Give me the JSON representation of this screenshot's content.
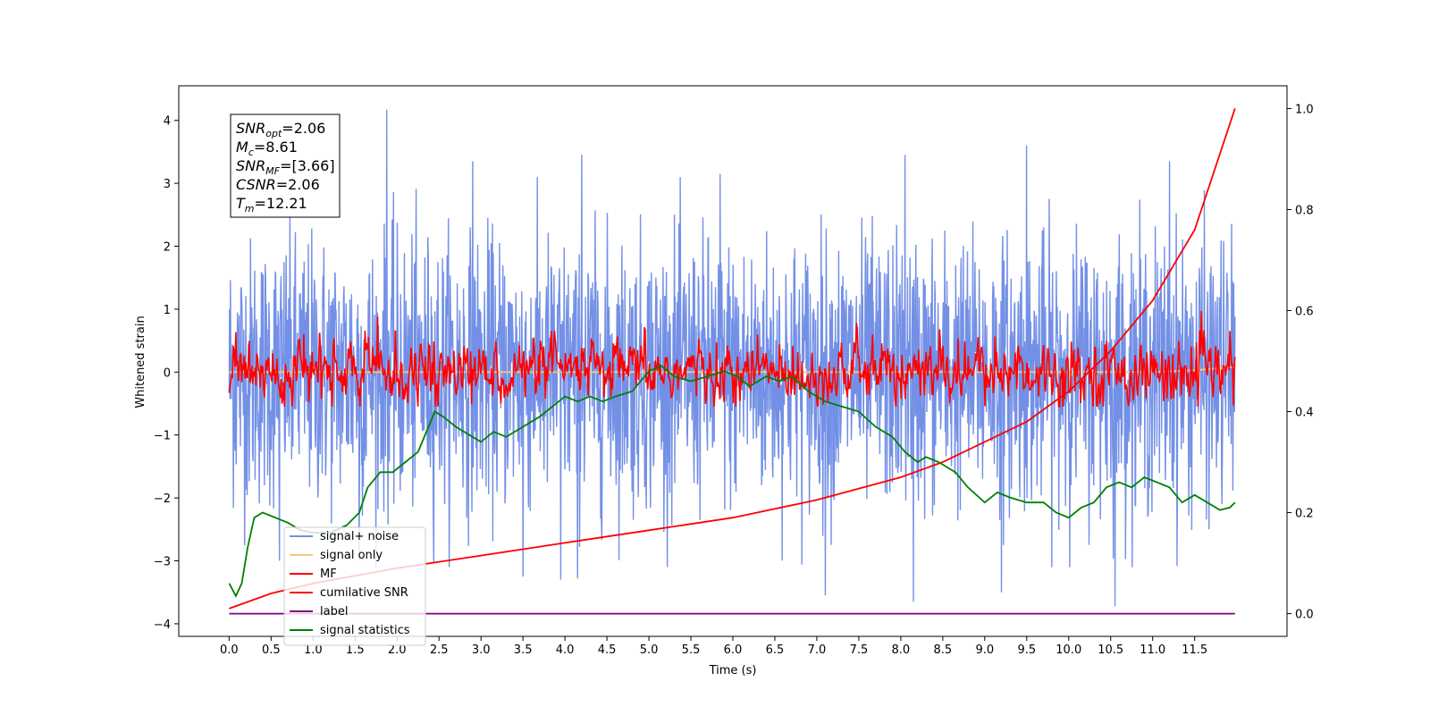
{
  "chart_data": {
    "type": "line",
    "title": "",
    "xlabel": "Time (s)",
    "ylabel": "Whitened strain",
    "xlim": [
      -0.6,
      12.6
    ],
    "ylim": [
      -4.2,
      4.55
    ],
    "y2lim": [
      -0.045,
      1.045
    ],
    "xticks": [
      0.0,
      0.5,
      1.0,
      1.5,
      2.0,
      2.5,
      3.0,
      3.5,
      4.0,
      4.5,
      5.0,
      5.5,
      6.0,
      6.5,
      7.0,
      7.5,
      8.0,
      8.5,
      9.0,
      9.5,
      10.0,
      10.5,
      11.0,
      11.5
    ],
    "xtick_labels": [
      "0.0",
      "0.5",
      "1.0",
      "1.5",
      "2.0",
      "2.5",
      "3.0",
      "3.5",
      "4.0",
      "4.5",
      "5.0",
      "5.5",
      "6.0",
      "6.5",
      "7.0",
      "7.5",
      "8.0",
      "8.5",
      "9.0",
      "9.5",
      "10.0",
      "10.5",
      "11.0",
      "11.5"
    ],
    "yticks": [
      -4,
      -3,
      -2,
      -1,
      0,
      1,
      2,
      3,
      4
    ],
    "ytick_labels": [
      "−4",
      "−3",
      "−2",
      "−1",
      "0",
      "1",
      "2",
      "3",
      "4"
    ],
    "y2ticks": [
      0.0,
      0.2,
      0.4,
      0.6,
      0.8,
      1.0
    ],
    "y2tick_labels": [
      "0.0",
      "0.2",
      "0.4",
      "0.6",
      "0.8",
      "1.0"
    ],
    "grid": false,
    "legend_position": "lower-left",
    "annotation": {
      "lines": [
        {
          "sym": "SNR",
          "sub": "opt",
          "val": "=2.06"
        },
        {
          "sym": "M",
          "sub": "c",
          "val": "=8.61"
        },
        {
          "sym": "SNR",
          "sub": "MF",
          "val": "=[3.66]"
        },
        {
          "sym": "CSNR",
          "sub": "",
          "val": "=2.06"
        },
        {
          "sym": "T",
          "sub": "m",
          "val": "=12.21"
        }
      ]
    },
    "series": [
      {
        "name": "signal+ noise",
        "color": "#7390e6",
        "axis": "left",
        "style": "noise",
        "sigma": 1.05,
        "spikes": [
          [
            1.88,
            4.17
          ],
          [
            9.5,
            3.6
          ],
          [
            11.2,
            3.35
          ],
          [
            4.2,
            3.45
          ],
          [
            2.9,
            3.35
          ],
          [
            8.05,
            3.45
          ],
          [
            10.55,
            -3.72
          ],
          [
            8.15,
            -3.65
          ],
          [
            7.1,
            -3.55
          ],
          [
            3.95,
            -3.3
          ],
          [
            4.15,
            -3.28
          ],
          [
            9.2,
            -3.5
          ],
          [
            3.5,
            -3.25
          ],
          [
            0.6,
            -3.0
          ],
          [
            5.85,
            3.15
          ],
          [
            1.55,
            -3.0
          ]
        ]
      },
      {
        "name": "signal only",
        "color": "#f5c87a",
        "axis": "left",
        "values": [
          [
            0,
            0
          ],
          [
            11.0,
            0
          ],
          [
            11.5,
            0.03
          ],
          [
            11.98,
            0.08
          ]
        ]
      },
      {
        "name": "MF",
        "color": "#ff0000",
        "axis": "left",
        "style": "mf"
      },
      {
        "name": "cumilative SNR",
        "color": "#ff0000",
        "axis": "right",
        "values": [
          [
            0.0,
            0.01
          ],
          [
            0.5,
            0.04
          ],
          [
            1.0,
            0.06
          ],
          [
            2.0,
            0.09
          ],
          [
            3.0,
            0.115
          ],
          [
            4.0,
            0.14
          ],
          [
            5.0,
            0.165
          ],
          [
            6.0,
            0.19
          ],
          [
            7.0,
            0.225
          ],
          [
            8.0,
            0.27
          ],
          [
            8.5,
            0.3
          ],
          [
            9.0,
            0.34
          ],
          [
            9.5,
            0.38
          ],
          [
            10.0,
            0.44
          ],
          [
            10.5,
            0.52
          ],
          [
            11.0,
            0.62
          ],
          [
            11.5,
            0.76
          ],
          [
            11.98,
            1.0
          ]
        ]
      },
      {
        "name": "label",
        "color": "#800080",
        "axis": "right",
        "values": [
          [
            0.0,
            0.0
          ],
          [
            11.98,
            0.0
          ]
        ]
      },
      {
        "name": "signal statistics",
        "color": "#008000",
        "axis": "right",
        "values": [
          [
            0.0,
            0.06
          ],
          [
            0.08,
            0.035
          ],
          [
            0.15,
            0.06
          ],
          [
            0.22,
            0.13
          ],
          [
            0.3,
            0.19
          ],
          [
            0.4,
            0.2
          ],
          [
            0.55,
            0.19
          ],
          [
            0.7,
            0.18
          ],
          [
            0.85,
            0.165
          ],
          [
            1.0,
            0.16
          ],
          [
            1.2,
            0.16
          ],
          [
            1.4,
            0.175
          ],
          [
            1.55,
            0.2
          ],
          [
            1.65,
            0.25
          ],
          [
            1.8,
            0.28
          ],
          [
            1.95,
            0.28
          ],
          [
            2.1,
            0.3
          ],
          [
            2.25,
            0.32
          ],
          [
            2.35,
            0.36
          ],
          [
            2.45,
            0.4
          ],
          [
            2.55,
            0.39
          ],
          [
            2.7,
            0.37
          ],
          [
            2.9,
            0.35
          ],
          [
            3.0,
            0.34
          ],
          [
            3.15,
            0.36
          ],
          [
            3.3,
            0.35
          ],
          [
            3.5,
            0.37
          ],
          [
            3.7,
            0.39
          ],
          [
            3.85,
            0.41
          ],
          [
            4.0,
            0.43
          ],
          [
            4.15,
            0.42
          ],
          [
            4.3,
            0.43
          ],
          [
            4.45,
            0.42
          ],
          [
            4.6,
            0.43
          ],
          [
            4.8,
            0.44
          ],
          [
            5.0,
            0.48
          ],
          [
            5.15,
            0.49
          ],
          [
            5.3,
            0.47
          ],
          [
            5.5,
            0.46
          ],
          [
            5.7,
            0.47
          ],
          [
            5.9,
            0.48
          ],
          [
            6.05,
            0.47
          ],
          [
            6.2,
            0.45
          ],
          [
            6.4,
            0.47
          ],
          [
            6.55,
            0.46
          ],
          [
            6.7,
            0.47
          ],
          [
            6.9,
            0.44
          ],
          [
            7.1,
            0.42
          ],
          [
            7.3,
            0.41
          ],
          [
            7.5,
            0.4
          ],
          [
            7.7,
            0.37
          ],
          [
            7.9,
            0.35
          ],
          [
            8.05,
            0.32
          ],
          [
            8.2,
            0.3
          ],
          [
            8.3,
            0.31
          ],
          [
            8.45,
            0.3
          ],
          [
            8.65,
            0.28
          ],
          [
            8.8,
            0.25
          ],
          [
            9.0,
            0.22
          ],
          [
            9.15,
            0.24
          ],
          [
            9.3,
            0.23
          ],
          [
            9.5,
            0.22
          ],
          [
            9.7,
            0.22
          ],
          [
            9.85,
            0.2
          ],
          [
            10.0,
            0.19
          ],
          [
            10.15,
            0.21
          ],
          [
            10.3,
            0.22
          ],
          [
            10.45,
            0.25
          ],
          [
            10.6,
            0.26
          ],
          [
            10.75,
            0.25
          ],
          [
            10.9,
            0.27
          ],
          [
            11.05,
            0.26
          ],
          [
            11.2,
            0.25
          ],
          [
            11.35,
            0.22
          ],
          [
            11.5,
            0.235
          ],
          [
            11.65,
            0.22
          ],
          [
            11.8,
            0.205
          ],
          [
            11.92,
            0.21
          ],
          [
            11.98,
            0.22
          ]
        ]
      }
    ]
  }
}
